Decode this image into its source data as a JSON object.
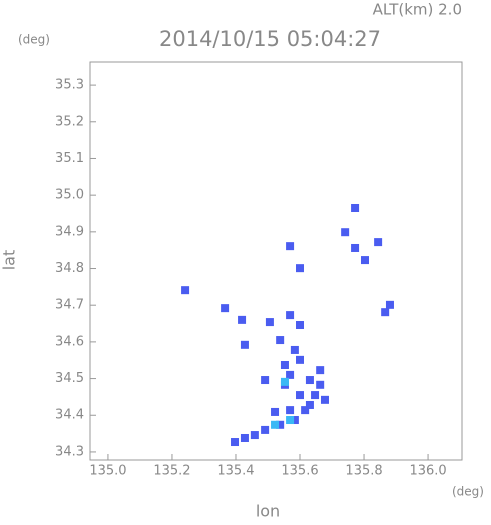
{
  "chart_data": {
    "type": "scatter",
    "header": "ALT(km) 2.0",
    "title": "2014/10/15 05:04:27",
    "y_unit": "(deg)",
    "x_unit": "(deg)",
    "x_label": "lon",
    "y_label": "lat",
    "xlim": [
      134.944,
      136.106
    ],
    "ylim": [
      34.278,
      35.363
    ],
    "xticks": [
      {
        "value": 135,
        "label": "135.0"
      },
      135.2,
      135.4,
      135.6,
      135.8,
      {
        "value": 136,
        "label": "136.0"
      }
    ],
    "yticks": [
      34.3,
      34.4,
      34.5,
      34.6,
      34.7,
      34.8,
      34.9,
      {
        "value": 35,
        "label": "35.0"
      },
      35.1,
      35.2,
      35.3
    ],
    "series": [
      {
        "color": "#4a5cf0",
        "x": [
          135.772,
          135.741,
          135.844,
          135.803,
          135.772,
          135.569,
          135.6,
          135.241,
          135.366,
          135.419,
          135.506,
          135.569,
          135.6,
          135.881,
          135.866,
          135.538,
          135.584,
          135.553,
          135.6,
          135.569,
          135.631,
          135.663,
          135.553,
          135.6,
          135.647,
          135.678,
          135.616,
          135.569,
          135.522,
          135.538,
          135.491,
          135.459,
          135.428,
          135.397,
          135.584,
          135.631,
          135.663,
          135.491,
          135.428
        ],
        "values": [
          34.965,
          34.899,
          34.872,
          34.823,
          34.856,
          34.861,
          34.801,
          34.741,
          34.692,
          34.66,
          34.654,
          34.673,
          34.646,
          34.701,
          34.681,
          34.605,
          34.578,
          34.537,
          34.551,
          34.51,
          34.496,
          34.483,
          34.483,
          34.455,
          34.455,
          34.442,
          34.414,
          34.414,
          34.409,
          34.374,
          34.36,
          34.346,
          34.338,
          34.327,
          34.387,
          34.428,
          34.523,
          34.496,
          34.592
        ]
      },
      {
        "color": "#3ab8f5",
        "x": [
          135.553,
          135.569,
          135.522
        ],
        "values": [
          34.491,
          34.387,
          34.374
        ]
      }
    ]
  }
}
